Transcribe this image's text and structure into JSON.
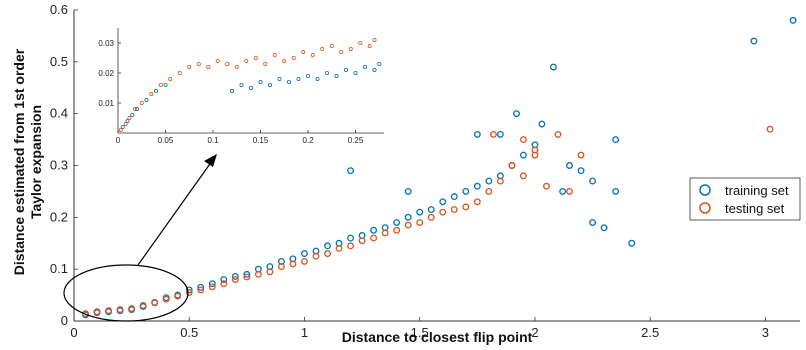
{
  "chart_data": [
    {
      "type": "scatter",
      "xlabel": "Distance to closest flip point",
      "ylabel": [
        "Distance estimated from 1st order",
        "Taylor expansion"
      ],
      "xlim": [
        0,
        3.15
      ],
      "ylim": [
        0,
        0.6
      ],
      "xticks": [
        "0",
        "0.5",
        "1",
        "1.5",
        "2",
        "2.5",
        "3"
      ],
      "yticks": [
        "0",
        "0.1",
        "0.2",
        "0.3",
        "0.4",
        "0.5",
        "0.6"
      ],
      "legend": {
        "position": "right",
        "entries": [
          "training set",
          "testing set"
        ]
      },
      "grid": false,
      "series": [
        {
          "name": "training set",
          "color": "#0072BD",
          "marker": "open-circle",
          "points": [
            [
              0.05,
              0.012
            ],
            [
              0.1,
              0.016
            ],
            [
              0.15,
              0.018
            ],
            [
              0.2,
              0.02
            ],
            [
              0.25,
              0.022
            ],
            [
              0.3,
              0.028
            ],
            [
              0.35,
              0.035
            ],
            [
              0.4,
              0.045
            ],
            [
              0.45,
              0.05
            ],
            [
              0.5,
              0.06
            ],
            [
              0.55,
              0.065
            ],
            [
              0.6,
              0.072
            ],
            [
              0.65,
              0.08
            ],
            [
              0.7,
              0.086
            ],
            [
              0.75,
              0.09
            ],
            [
              0.8,
              0.1
            ],
            [
              0.85,
              0.105
            ],
            [
              0.9,
              0.115
            ],
            [
              0.95,
              0.12
            ],
            [
              1.0,
              0.13
            ],
            [
              1.05,
              0.135
            ],
            [
              1.1,
              0.145
            ],
            [
              1.15,
              0.15
            ],
            [
              1.2,
              0.16
            ],
            [
              1.25,
              0.165
            ],
            [
              1.3,
              0.175
            ],
            [
              1.35,
              0.18
            ],
            [
              1.4,
              0.19
            ],
            [
              1.45,
              0.2
            ],
            [
              1.5,
              0.21
            ],
            [
              1.55,
              0.215
            ],
            [
              1.6,
              0.23
            ],
            [
              1.65,
              0.24
            ],
            [
              1.7,
              0.25
            ],
            [
              1.75,
              0.26
            ],
            [
              1.8,
              0.27
            ],
            [
              1.85,
              0.28
            ],
            [
              1.9,
              0.3
            ],
            [
              1.95,
              0.32
            ],
            [
              2.0,
              0.34
            ],
            [
              1.2,
              0.29
            ],
            [
              1.45,
              0.25
            ],
            [
              1.75,
              0.36
            ],
            [
              1.85,
              0.36
            ],
            [
              1.92,
              0.4
            ],
            [
              2.03,
              0.38
            ],
            [
              2.08,
              0.49
            ],
            [
              2.15,
              0.3
            ],
            [
              2.2,
              0.29
            ],
            [
              2.25,
              0.27
            ],
            [
              2.35,
              0.35
            ],
            [
              2.35,
              0.25
            ],
            [
              2.25,
              0.19
            ],
            [
              2.3,
              0.18
            ],
            [
              2.42,
              0.15
            ],
            [
              2.12,
              0.25
            ],
            [
              2.95,
              0.54
            ],
            [
              3.12,
              0.58
            ]
          ]
        },
        {
          "name": "testing set",
          "color": "#D95319",
          "marker": "open-circle",
          "points": [
            [
              0.05,
              0.014
            ],
            [
              0.1,
              0.018
            ],
            [
              0.15,
              0.02
            ],
            [
              0.2,
              0.022
            ],
            [
              0.25,
              0.024
            ],
            [
              0.3,
              0.03
            ],
            [
              0.35,
              0.036
            ],
            [
              0.4,
              0.042
            ],
            [
              0.45,
              0.048
            ],
            [
              0.5,
              0.055
            ],
            [
              0.55,
              0.06
            ],
            [
              0.6,
              0.066
            ],
            [
              0.65,
              0.072
            ],
            [
              0.7,
              0.08
            ],
            [
              0.75,
              0.085
            ],
            [
              0.8,
              0.09
            ],
            [
              0.85,
              0.095
            ],
            [
              0.9,
              0.105
            ],
            [
              0.95,
              0.11
            ],
            [
              1.0,
              0.115
            ],
            [
              1.05,
              0.125
            ],
            [
              1.1,
              0.13
            ],
            [
              1.15,
              0.14
            ],
            [
              1.2,
              0.145
            ],
            [
              1.25,
              0.155
            ],
            [
              1.3,
              0.16
            ],
            [
              1.35,
              0.17
            ],
            [
              1.4,
              0.175
            ],
            [
              1.45,
              0.185
            ],
            [
              1.5,
              0.19
            ],
            [
              1.55,
              0.2
            ],
            [
              1.6,
              0.21
            ],
            [
              1.65,
              0.215
            ],
            [
              1.7,
              0.22
            ],
            [
              1.75,
              0.23
            ],
            [
              1.8,
              0.25
            ],
            [
              1.85,
              0.27
            ],
            [
              1.9,
              0.3
            ],
            [
              1.95,
              0.28
            ],
            [
              2.0,
              0.32
            ],
            [
              1.82,
              0.36
            ],
            [
              1.95,
              0.35
            ],
            [
              2.05,
              0.26
            ],
            [
              2.1,
              0.36
            ],
            [
              2.15,
              0.25
            ],
            [
              2.2,
              0.32
            ],
            [
              2.0,
              0.33
            ],
            [
              3.02,
              0.37
            ]
          ]
        }
      ]
    },
    {
      "type": "scatter",
      "inset": true,
      "xlim": [
        0,
        0.28
      ],
      "ylim": [
        0,
        0.035
      ],
      "xticks": [
        "0",
        "0.05",
        "0.1",
        "0.15",
        "0.2",
        "0.25"
      ],
      "yticks": [
        "0.01",
        "0.02",
        "0.03"
      ],
      "grid": false,
      "series": [
        {
          "name": "training set",
          "color": "#0072BD",
          "points": [
            [
              0.005,
              0.002
            ],
            [
              0.01,
              0.004
            ],
            [
              0.015,
              0.006
            ],
            [
              0.02,
              0.008
            ],
            [
              0.03,
              0.011
            ],
            [
              0.04,
              0.014
            ],
            [
              0.05,
              0.016
            ],
            [
              0.12,
              0.014
            ],
            [
              0.13,
              0.016
            ],
            [
              0.14,
              0.015
            ],
            [
              0.15,
              0.017
            ],
            [
              0.16,
              0.016
            ],
            [
              0.17,
              0.018
            ],
            [
              0.18,
              0.017
            ],
            [
              0.19,
              0.018
            ],
            [
              0.2,
              0.019
            ],
            [
              0.21,
              0.018
            ],
            [
              0.22,
              0.02
            ],
            [
              0.23,
              0.019
            ],
            [
              0.24,
              0.021
            ],
            [
              0.25,
              0.02
            ],
            [
              0.26,
              0.022
            ],
            [
              0.27,
              0.021
            ],
            [
              0.275,
              0.023
            ]
          ]
        },
        {
          "name": "testing set",
          "color": "#D95319",
          "points": [
            [
              0.003,
              0.001
            ],
            [
              0.008,
              0.003
            ],
            [
              0.012,
              0.005
            ],
            [
              0.018,
              0.008
            ],
            [
              0.025,
              0.01
            ],
            [
              0.035,
              0.013
            ],
            [
              0.045,
              0.016
            ],
            [
              0.055,
              0.018
            ],
            [
              0.065,
              0.02
            ],
            [
              0.075,
              0.022
            ],
            [
              0.085,
              0.023
            ],
            [
              0.095,
              0.022
            ],
            [
              0.105,
              0.024
            ],
            [
              0.115,
              0.023
            ],
            [
              0.125,
              0.022
            ],
            [
              0.135,
              0.024
            ],
            [
              0.145,
              0.025
            ],
            [
              0.155,
              0.023
            ],
            [
              0.165,
              0.026
            ],
            [
              0.175,
              0.024
            ],
            [
              0.185,
              0.025
            ],
            [
              0.195,
              0.027
            ],
            [
              0.205,
              0.026
            ],
            [
              0.215,
              0.028
            ],
            [
              0.225,
              0.029
            ],
            [
              0.235,
              0.027
            ],
            [
              0.245,
              0.028
            ],
            [
              0.255,
              0.03
            ],
            [
              0.265,
              0.029
            ],
            [
              0.27,
              0.031
            ]
          ]
        }
      ]
    }
  ]
}
